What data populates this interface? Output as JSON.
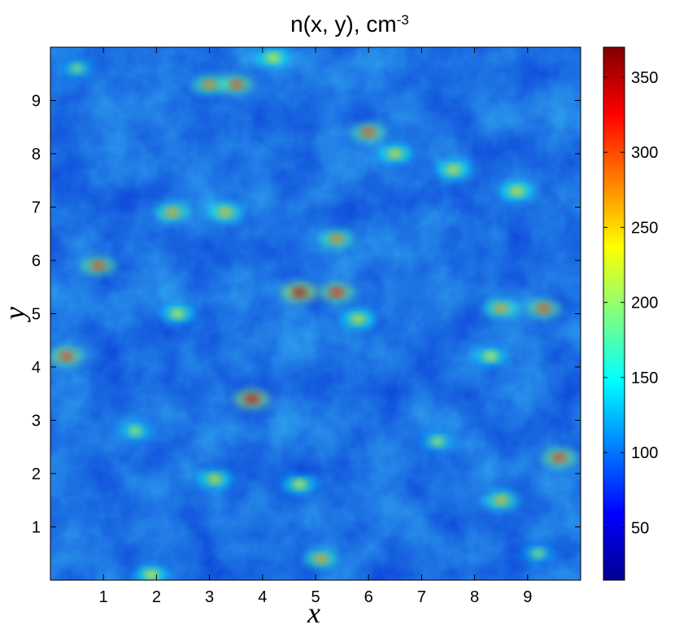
{
  "chart_data": {
    "type": "heatmap",
    "title": "n(x, y), cm",
    "title_superscript": "-3",
    "xlabel": "x",
    "ylabel": "y",
    "xlim": [
      0,
      10
    ],
    "ylim": [
      0,
      10
    ],
    "x_ticks": [
      1,
      2,
      3,
      4,
      5,
      6,
      7,
      8,
      9
    ],
    "y_ticks": [
      1,
      2,
      3,
      4,
      5,
      6,
      7,
      8,
      9
    ],
    "x_tick_labels": [
      "1",
      "2",
      "3",
      "4",
      "5",
      "6",
      "7",
      "8",
      "9"
    ],
    "y_tick_labels": [
      "1",
      "2",
      "3",
      "4",
      "5",
      "6",
      "7",
      "8",
      "9"
    ],
    "colormap": "jet",
    "colorbar": {
      "range": [
        15,
        370
      ],
      "ticks": [
        50,
        100,
        150,
        200,
        250,
        300,
        350
      ],
      "tick_labels": [
        "50",
        "100",
        "150",
        "200",
        "250",
        "300",
        "350"
      ],
      "placement": "right"
    },
    "background_value": 100,
    "hotspots": [
      {
        "x": 4.7,
        "y": 5.4,
        "value": 350
      },
      {
        "x": 3.8,
        "y": 3.4,
        "value": 340
      },
      {
        "x": 6.0,
        "y": 8.4,
        "value": 300
      },
      {
        "x": 3.5,
        "y": 9.3,
        "value": 300
      },
      {
        "x": 3.0,
        "y": 9.3,
        "value": 280
      },
      {
        "x": 0.3,
        "y": 4.2,
        "value": 310
      },
      {
        "x": 0.9,
        "y": 5.9,
        "value": 300
      },
      {
        "x": 5.4,
        "y": 5.4,
        "value": 320
      },
      {
        "x": 9.3,
        "y": 5.1,
        "value": 300
      },
      {
        "x": 8.5,
        "y": 5.1,
        "value": 270
      },
      {
        "x": 2.3,
        "y": 6.9,
        "value": 270
      },
      {
        "x": 3.3,
        "y": 6.9,
        "value": 260
      },
      {
        "x": 5.4,
        "y": 6.4,
        "value": 280
      },
      {
        "x": 6.5,
        "y": 8.0,
        "value": 250
      },
      {
        "x": 7.6,
        "y": 7.7,
        "value": 250
      },
      {
        "x": 8.8,
        "y": 7.3,
        "value": 250
      },
      {
        "x": 9.6,
        "y": 2.3,
        "value": 310
      },
      {
        "x": 8.5,
        "y": 1.5,
        "value": 260
      },
      {
        "x": 5.1,
        "y": 0.4,
        "value": 270
      },
      {
        "x": 3.1,
        "y": 1.9,
        "value": 250
      },
      {
        "x": 4.2,
        "y": 9.8,
        "value": 240
      },
      {
        "x": 1.9,
        "y": 0.1,
        "value": 240
      },
      {
        "x": 5.8,
        "y": 4.9,
        "value": 250
      },
      {
        "x": 2.4,
        "y": 5.0,
        "value": 230
      },
      {
        "x": 8.3,
        "y": 4.2,
        "value": 230
      },
      {
        "x": 4.7,
        "y": 1.8,
        "value": 230
      },
      {
        "x": 1.6,
        "y": 2.8,
        "value": 210
      },
      {
        "x": 7.3,
        "y": 2.6,
        "value": 210
      },
      {
        "x": 9.2,
        "y": 0.5,
        "value": 200
      },
      {
        "x": 0.5,
        "y": 9.6,
        "value": 200
      }
    ]
  }
}
